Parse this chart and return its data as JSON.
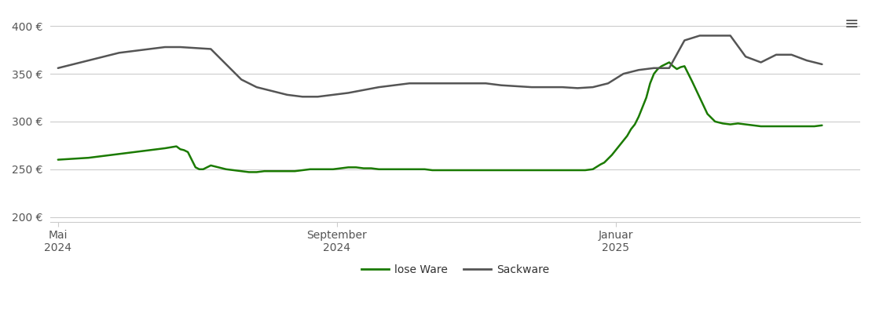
{
  "y_ticks": [
    200,
    250,
    300,
    350,
    400
  ],
  "y_tick_labels": [
    "200 €",
    "250 €",
    "300 €",
    "350 €",
    "400 €"
  ],
  "ylim": [
    195,
    415
  ],
  "x_tick_labels": [
    "Mai\n2024",
    "September\n2024",
    "Januar\n2025"
  ],
  "x_tick_positions": [
    0.0,
    0.365,
    0.73
  ],
  "lose_ware_color": "#1a7a00",
  "sackware_color": "#555555",
  "background_color": "#ffffff",
  "grid_color": "#cccccc",
  "legend_labels": [
    "lose Ware",
    "Sackware"
  ],
  "lose_ware": {
    "x": [
      0.0,
      0.02,
      0.04,
      0.06,
      0.08,
      0.1,
      0.12,
      0.14,
      0.155,
      0.16,
      0.165,
      0.17,
      0.175,
      0.18,
      0.185,
      0.19,
      0.195,
      0.2,
      0.21,
      0.22,
      0.23,
      0.24,
      0.25,
      0.26,
      0.27,
      0.28,
      0.29,
      0.3,
      0.31,
      0.32,
      0.33,
      0.34,
      0.35,
      0.36,
      0.37,
      0.38,
      0.39,
      0.4,
      0.41,
      0.42,
      0.43,
      0.44,
      0.45,
      0.46,
      0.47,
      0.48,
      0.49,
      0.5,
      0.51,
      0.52,
      0.53,
      0.54,
      0.55,
      0.56,
      0.57,
      0.58,
      0.59,
      0.6,
      0.61,
      0.62,
      0.63,
      0.64,
      0.65,
      0.66,
      0.67,
      0.68,
      0.69,
      0.7,
      0.71,
      0.715,
      0.72,
      0.725,
      0.73,
      0.735,
      0.74,
      0.745,
      0.75,
      0.755,
      0.76,
      0.765,
      0.77,
      0.775,
      0.78,
      0.785,
      0.79,
      0.795,
      0.8,
      0.805,
      0.81,
      0.815,
      0.82,
      0.83,
      0.84,
      0.85,
      0.86,
      0.87,
      0.88,
      0.89,
      0.9,
      0.91,
      0.92,
      0.93,
      0.94,
      0.95,
      0.96,
      0.97,
      0.98,
      0.99,
      1.0
    ],
    "y": [
      260,
      261,
      262,
      264,
      266,
      268,
      270,
      272,
      274,
      271,
      270,
      268,
      260,
      252,
      250,
      250,
      252,
      254,
      252,
      250,
      249,
      248,
      247,
      247,
      248,
      248,
      248,
      248,
      248,
      249,
      250,
      250,
      250,
      250,
      251,
      252,
      252,
      251,
      251,
      250,
      250,
      250,
      250,
      250,
      250,
      250,
      249,
      249,
      249,
      249,
      249,
      249,
      249,
      249,
      249,
      249,
      249,
      249,
      249,
      249,
      249,
      249,
      249,
      249,
      249,
      249,
      249,
      250,
      255,
      257,
      261,
      265,
      270,
      275,
      280,
      285,
      292,
      297,
      305,
      315,
      325,
      340,
      350,
      355,
      358,
      360,
      362,
      358,
      355,
      357,
      358,
      342,
      325,
      308,
      300,
      298,
      297,
      298,
      297,
      296,
      295,
      295,
      295,
      295,
      295,
      295,
      295,
      295,
      296
    ]
  },
  "sackware": {
    "x": [
      0.0,
      0.02,
      0.04,
      0.06,
      0.08,
      0.1,
      0.12,
      0.14,
      0.16,
      0.18,
      0.2,
      0.22,
      0.24,
      0.26,
      0.28,
      0.3,
      0.32,
      0.34,
      0.36,
      0.38,
      0.4,
      0.42,
      0.44,
      0.46,
      0.48,
      0.5,
      0.52,
      0.54,
      0.56,
      0.58,
      0.6,
      0.62,
      0.64,
      0.66,
      0.68,
      0.7,
      0.72,
      0.74,
      0.76,
      0.78,
      0.8,
      0.82,
      0.84,
      0.86,
      0.88,
      0.9,
      0.92,
      0.94,
      0.96,
      0.98,
      1.0
    ],
    "y": [
      356,
      360,
      364,
      368,
      372,
      374,
      376,
      378,
      378,
      377,
      376,
      360,
      344,
      336,
      332,
      328,
      326,
      326,
      328,
      330,
      333,
      336,
      338,
      340,
      340,
      340,
      340,
      340,
      340,
      338,
      337,
      336,
      336,
      336,
      335,
      336,
      340,
      350,
      354,
      356,
      356,
      385,
      390,
      390,
      390,
      368,
      362,
      370,
      370,
      364,
      360
    ]
  }
}
